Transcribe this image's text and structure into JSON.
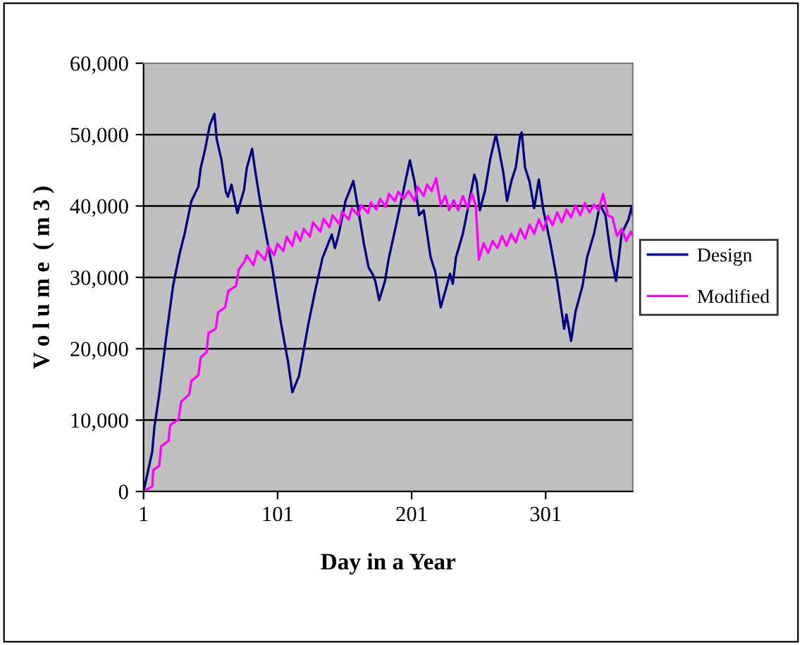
{
  "chart_data": {
    "type": "line",
    "xlabel": "Day in a Year",
    "ylabel": "V o l u m e  ( m 3 )",
    "xlim": [
      1,
      366
    ],
    "xticks": [
      1,
      101,
      201,
      301
    ],
    "ylim": [
      0,
      60000
    ],
    "yticks": [
      0,
      {
        "value": 10000,
        "label": "10,000"
      },
      {
        "value": 20000,
        "label": "20,000"
      },
      {
        "value": 30000,
        "label": "30,000"
      },
      {
        "value": 40000,
        "label": "40,000"
      },
      {
        "value": 50000,
        "label": "50,000"
      },
      {
        "value": 60000,
        "label": "60,000"
      }
    ],
    "grid": "y",
    "legend": "right",
    "marker": "none",
    "line_style": "solid",
    "series": [
      {
        "name": "Design",
        "color": "#000080",
        "x": [
          1,
          7.5,
          9,
          12.7,
          17.8,
          23,
          28,
          31.5,
          36.7,
          41.9,
          43.6,
          47,
          50.4,
          53.9,
          55.6,
          59,
          62.4,
          64,
          66.6,
          71,
          76,
          78,
          82,
          84,
          88.5,
          93,
          97,
          103.6,
          108.8,
          112,
          117,
          124,
          129,
          134.5,
          141.4,
          143.8,
          146.5,
          151.7,
          157.5,
          161,
          165.4,
          168.9,
          172,
          174,
          176.8,
          181,
          184,
          189.5,
          194.7,
          199.7,
          203.2,
          206.6,
          210,
          215.2,
          218.6,
          222.7,
          227.2,
          229.6,
          231.7,
          234.1,
          239.2,
          242.7,
          247.8,
          249.5,
          251.9,
          255.7,
          259.8,
          263.9,
          266.7,
          269.4,
          272.2,
          275.3,
          278.7,
          282.1,
          283.2,
          285.6,
          289,
          292.4,
          295.9,
          299.3,
          304.5,
          309.6,
          314.8,
          316.5,
          320,
          323.3,
          328.5,
          331.9,
          337.1,
          341.5,
          345.6,
          349.8,
          353.5,
          357.7,
          362.8,
          365.2,
          366
        ],
        "values": [
          0,
          5600,
          8900,
          13600,
          21500,
          28800,
          33400,
          36000,
          40700,
          42700,
          45300,
          48000,
          51300,
          52900,
          49300,
          46600,
          42000,
          41300,
          43000,
          39000,
          42300,
          45300,
          48000,
          45300,
          40000,
          35400,
          31400,
          23500,
          18200,
          13900,
          16200,
          23500,
          28100,
          32700,
          36000,
          34100,
          36000,
          40700,
          43500,
          39700,
          34700,
          31400,
          30400,
          29400,
          26800,
          29400,
          32700,
          37400,
          42000,
          46400,
          43400,
          38700,
          39400,
          32800,
          30800,
          25800,
          28800,
          30500,
          29100,
          32800,
          36100,
          39400,
          44400,
          43400,
          39400,
          42100,
          46700,
          50000,
          47400,
          44700,
          40700,
          43400,
          45400,
          50000,
          50300,
          45400,
          43400,
          39700,
          43700,
          39400,
          34800,
          29500,
          22800,
          24800,
          21100,
          25200,
          28800,
          32800,
          36100,
          40200,
          38700,
          32800,
          29500,
          36100,
          38100,
          40000,
          38700
        ]
      },
      {
        "name": "Modified",
        "color": "#ff00ff",
        "x": [
          1,
          7.5,
          8.2,
          12.7,
          14.1,
          19.6,
          20.9,
          27.1,
          29.1,
          35,
          36.7,
          41.9,
          43.6,
          48,
          49.4,
          54.9,
          56.6,
          61.8,
          64.2,
          70,
          72,
          76,
          78,
          83,
          85.8,
          91.6,
          94,
          98.5,
          100.9,
          105.3,
          107.8,
          112,
          114.6,
          118,
          120.5,
          125,
          127.4,
          132.9,
          135.3,
          139.7,
          142,
          147.3,
          149,
          154,
          156.5,
          161,
          163.4,
          168.5,
          170.5,
          174.7,
          177.5,
          181.6,
          184,
          188.5,
          191,
          195,
          198.7,
          203.2,
          205.6,
          210,
          212.5,
          215.9,
          219.3,
          222.7,
          226.2,
          229,
          232.4,
          235.8,
          239.2,
          242.7,
          246.1,
          248.8,
          251.2,
          254.7,
          258.1,
          261.5,
          265,
          268.4,
          271.8,
          275.3,
          278.7,
          282.1,
          285.6,
          289,
          292.4,
          295.9,
          299.3,
          302.7,
          306.2,
          309.6,
          313,
          316.5,
          319.9,
          323.3,
          326.8,
          330.2,
          333.6,
          337.1,
          340.5,
          343.9,
          347.4,
          350.8,
          354.2,
          357.7,
          361.1,
          364.5,
          366
        ],
        "values": [
          0,
          700,
          3000,
          3600,
          6300,
          7100,
          9300,
          10100,
          12600,
          13600,
          15500,
          16300,
          18800,
          19500,
          22200,
          22800,
          25100,
          25800,
          28100,
          28800,
          31100,
          32100,
          33100,
          31700,
          33700,
          32400,
          34400,
          33100,
          34700,
          33700,
          35700,
          34400,
          36400,
          35100,
          36800,
          35700,
          37700,
          36400,
          38200,
          37000,
          38700,
          37400,
          39200,
          38100,
          39700,
          38700,
          40100,
          39000,
          40500,
          39500,
          41000,
          39900,
          41700,
          40700,
          42000,
          41000,
          42100,
          40700,
          42700,
          41400,
          43000,
          42100,
          43900,
          40100,
          41400,
          39400,
          40800,
          39400,
          41400,
          39700,
          41700,
          40100,
          32500,
          34800,
          33400,
          35100,
          34100,
          35800,
          34400,
          36100,
          34900,
          36800,
          35400,
          37400,
          36100,
          38100,
          36600,
          38600,
          37300,
          39100,
          37700,
          39500,
          38400,
          40100,
          38700,
          40400,
          39100,
          40200,
          39400,
          41700,
          38700,
          38400,
          35800,
          36800,
          35100,
          36400,
          35800
        ]
      }
    ]
  }
}
